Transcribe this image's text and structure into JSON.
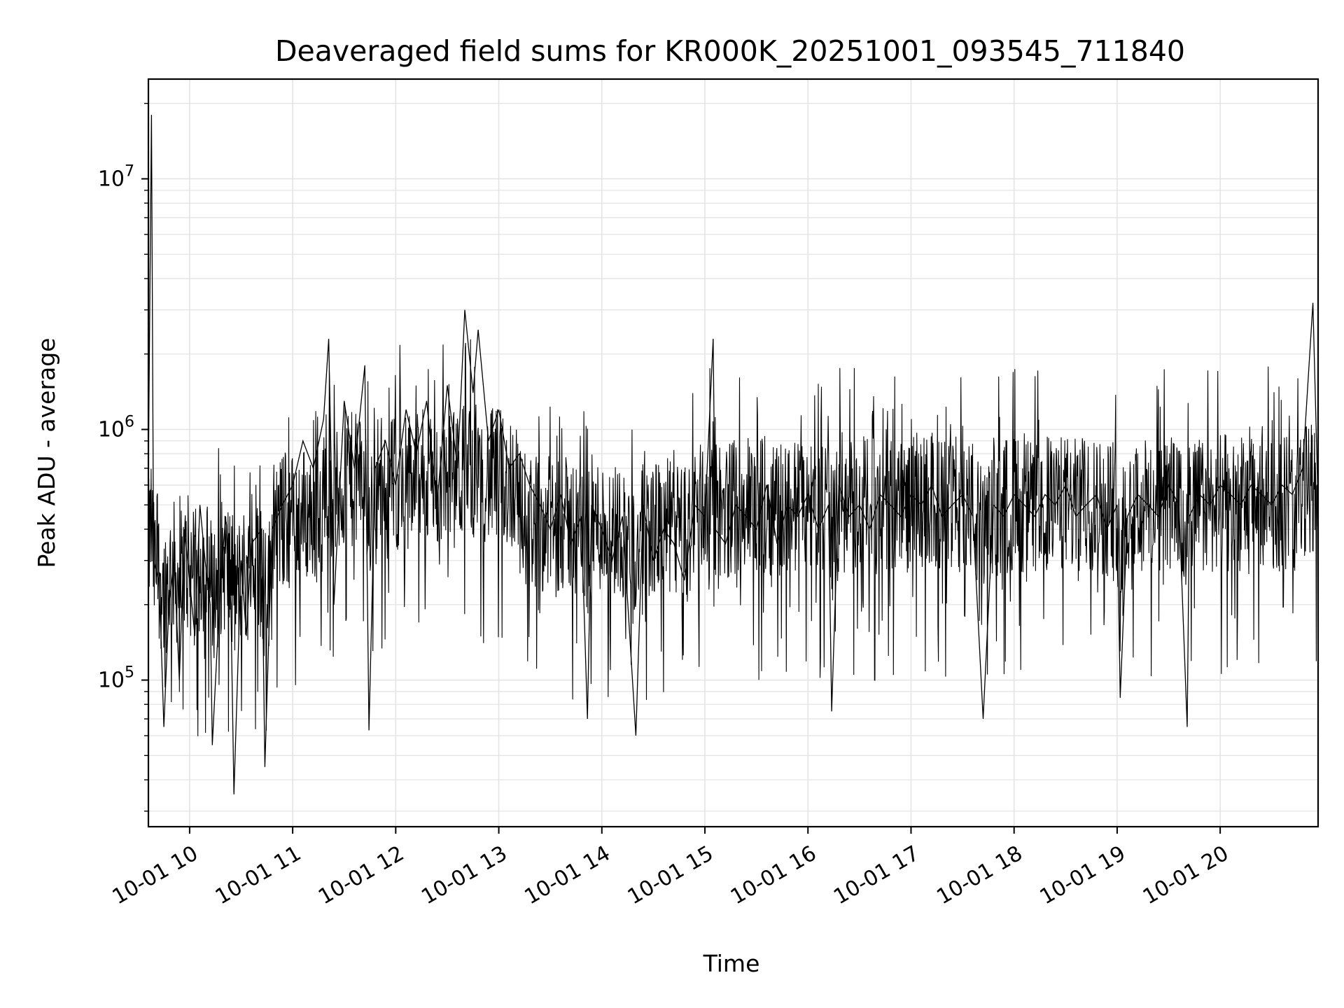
{
  "chart_data": {
    "type": "line",
    "title": "Deaveraged field sums for KR000K_20251001_093545_711840",
    "xlabel": "Time",
    "ylabel": "Peak ADU - average",
    "yscale": "log",
    "ylim": [
      26000,
      25000000
    ],
    "xlim": [
      9.6,
      20.95
    ],
    "grid": true,
    "x_ticks": [
      {
        "value": 10,
        "label": "10-01 10"
      },
      {
        "value": 11,
        "label": "10-01 11"
      },
      {
        "value": 12,
        "label": "10-01 12"
      },
      {
        "value": 13,
        "label": "10-01 13"
      },
      {
        "value": 14,
        "label": "10-01 14"
      },
      {
        "value": 15,
        "label": "10-01 15"
      },
      {
        "value": 16,
        "label": "10-01 16"
      },
      {
        "value": 17,
        "label": "10-01 17"
      },
      {
        "value": 18,
        "label": "10-01 18"
      },
      {
        "value": 19,
        "label": "10-01 19"
      },
      {
        "value": 20,
        "label": "10-01 20"
      }
    ],
    "y_ticks": [
      {
        "value": 100000,
        "base": "10",
        "exp": "5"
      },
      {
        "value": 1000000,
        "base": "10",
        "exp": "6"
      },
      {
        "value": 10000000,
        "base": "10",
        "exp": "7"
      }
    ],
    "series": [
      {
        "name": "field sums",
        "color": "#000000",
        "points": [
          [
            9.6,
            700000
          ],
          [
            9.63,
            18000000
          ],
          [
            9.65,
            300000
          ],
          [
            9.7,
            250000
          ],
          [
            9.72,
            160000
          ],
          [
            9.75,
            65000
          ],
          [
            9.8,
            200000
          ],
          [
            9.85,
            300000
          ],
          [
            9.9,
            100000
          ],
          [
            9.95,
            400000
          ],
          [
            10.0,
            250000
          ],
          [
            10.05,
            150000
          ],
          [
            10.1,
            500000
          ],
          [
            10.15,
            300000
          ],
          [
            10.2,
            200000
          ],
          [
            10.22,
            55000
          ],
          [
            10.3,
            250000
          ],
          [
            10.35,
            450000
          ],
          [
            10.4,
            200000
          ],
          [
            10.43,
            35000
          ],
          [
            10.5,
            300000
          ],
          [
            10.55,
            150000
          ],
          [
            10.6,
            350000
          ],
          [
            10.7,
            400000
          ],
          [
            10.73,
            45000
          ],
          [
            10.8,
            400000
          ],
          [
            10.9,
            500000
          ],
          [
            11.0,
            600000
          ],
          [
            11.1,
            900000
          ],
          [
            11.2,
            700000
          ],
          [
            11.3,
            1100000
          ],
          [
            11.35,
            2300000
          ],
          [
            11.4,
            200000
          ],
          [
            11.5,
            1300000
          ],
          [
            11.6,
            700000
          ],
          [
            11.7,
            1800000
          ],
          [
            11.74,
            63000
          ],
          [
            11.8,
            700000
          ],
          [
            11.9,
            900000
          ],
          [
            12.0,
            600000
          ],
          [
            12.1,
            1200000
          ],
          [
            12.2,
            800000
          ],
          [
            12.3,
            1300000
          ],
          [
            12.4,
            500000
          ],
          [
            12.5,
            1500000
          ],
          [
            12.6,
            700000
          ],
          [
            12.67,
            3000000
          ],
          [
            12.75,
            1400000
          ],
          [
            12.8,
            2500000
          ],
          [
            12.9,
            900000
          ],
          [
            13.0,
            1200000
          ],
          [
            13.1,
            700000
          ],
          [
            13.2,
            800000
          ],
          [
            13.3,
            600000
          ],
          [
            13.4,
            500000
          ],
          [
            13.5,
            400000
          ],
          [
            13.6,
            550000
          ],
          [
            13.7,
            350000
          ],
          [
            13.8,
            450000
          ],
          [
            13.86,
            70000
          ],
          [
            13.9,
            500000
          ],
          [
            14.0,
            400000
          ],
          [
            14.1,
            300000
          ],
          [
            14.2,
            450000
          ],
          [
            14.33,
            60000
          ],
          [
            14.4,
            500000
          ],
          [
            14.5,
            300000
          ],
          [
            14.6,
            400000
          ],
          [
            14.7,
            350000
          ],
          [
            14.8,
            250000
          ],
          [
            14.9,
            500000
          ],
          [
            15.0,
            450000
          ],
          [
            15.08,
            2300000
          ],
          [
            15.1,
            400000
          ],
          [
            15.2,
            350000
          ],
          [
            15.3,
            500000
          ],
          [
            15.4,
            450000
          ],
          [
            15.5,
            400000
          ],
          [
            15.6,
            600000
          ],
          [
            15.7,
            350000
          ],
          [
            15.8,
            500000
          ],
          [
            15.9,
            450000
          ],
          [
            16.0,
            550000
          ],
          [
            16.1,
            400000
          ],
          [
            16.2,
            500000
          ],
          [
            16.23,
            75000
          ],
          [
            16.3,
            600000
          ],
          [
            16.4,
            450000
          ],
          [
            16.5,
            500000
          ],
          [
            16.6,
            400000
          ],
          [
            16.7,
            550000
          ],
          [
            16.8,
            500000
          ],
          [
            16.9,
            450000
          ],
          [
            17.0,
            550000
          ],
          [
            17.1,
            500000
          ],
          [
            17.2,
            600000
          ],
          [
            17.3,
            450000
          ],
          [
            17.4,
            500000
          ],
          [
            17.5,
            550000
          ],
          [
            17.6,
            450000
          ],
          [
            17.7,
            70000
          ],
          [
            17.8,
            500000
          ],
          [
            17.9,
            450000
          ],
          [
            18.0,
            550000
          ],
          [
            18.1,
            500000
          ],
          [
            18.2,
            450000
          ],
          [
            18.3,
            550000
          ],
          [
            18.4,
            500000
          ],
          [
            18.5,
            600000
          ],
          [
            18.6,
            450000
          ],
          [
            18.7,
            500000
          ],
          [
            18.8,
            550000
          ],
          [
            18.9,
            400000
          ],
          [
            19.0,
            500000
          ],
          [
            19.03,
            85000
          ],
          [
            19.1,
            450000
          ],
          [
            19.2,
            550000
          ],
          [
            19.3,
            500000
          ],
          [
            19.4,
            450000
          ],
          [
            19.5,
            600000
          ],
          [
            19.6,
            500000
          ],
          [
            19.68,
            65000
          ],
          [
            19.7,
            450000
          ],
          [
            19.8,
            550000
          ],
          [
            19.9,
            500000
          ],
          [
            20.0,
            600000
          ],
          [
            20.1,
            550000
          ],
          [
            20.2,
            500000
          ],
          [
            20.3,
            600000
          ],
          [
            20.4,
            550000
          ],
          [
            20.5,
            500000
          ],
          [
            20.6,
            600000
          ],
          [
            20.7,
            550000
          ],
          [
            20.8,
            700000
          ],
          [
            20.9,
            3200000
          ],
          [
            20.95,
            500000
          ]
        ]
      }
    ]
  }
}
